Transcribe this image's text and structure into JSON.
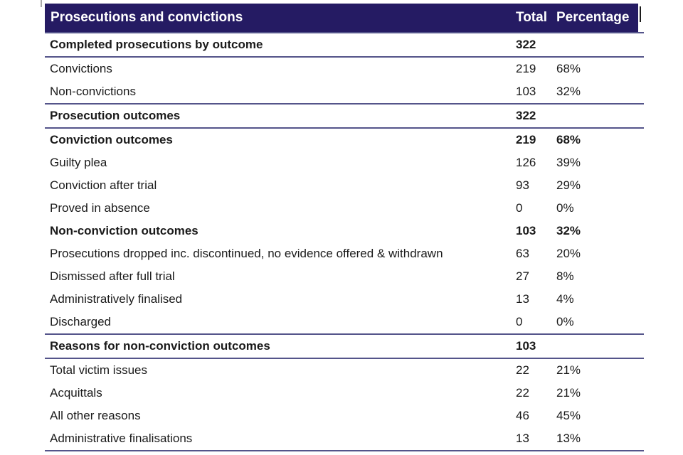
{
  "table": {
    "header": {
      "title": "Prosecutions and convictions",
      "col_total": "Total",
      "col_percentage": "Percentage"
    },
    "rows": [
      {
        "type": "section-bordered",
        "label": "Completed prosecutions by outcome",
        "total": "322",
        "pct": ""
      },
      {
        "type": "item",
        "label": "Convictions",
        "total": "219",
        "pct": "68%"
      },
      {
        "type": "item",
        "label": "Non-convictions",
        "total": "103",
        "pct": "32%"
      },
      {
        "type": "section-bordered",
        "label": "Prosecution outcomes",
        "total": "322",
        "pct": ""
      },
      {
        "type": "section",
        "label": "Conviction outcomes",
        "total": "219",
        "pct": "68%"
      },
      {
        "type": "item",
        "label": "Guilty plea",
        "total": "126",
        "pct": "39%"
      },
      {
        "type": "item",
        "label": "Conviction after trial",
        "total": "93",
        "pct": "29%"
      },
      {
        "type": "item",
        "label": "Proved in absence",
        "total": "0",
        "pct": "0%"
      },
      {
        "type": "section",
        "label": "Non-conviction outcomes",
        "total": "103",
        "pct": "32%"
      },
      {
        "type": "item",
        "label": "Prosecutions dropped inc. discontinued, no evidence offered & withdrawn",
        "total": "63",
        "pct": "20%"
      },
      {
        "type": "item",
        "label": "Dismissed after full trial",
        "total": "27",
        "pct": "8%"
      },
      {
        "type": "item",
        "label": "Administratively finalised",
        "total": "13",
        "pct": "4%"
      },
      {
        "type": "item",
        "label": "Discharged",
        "total": "0",
        "pct": "0%"
      },
      {
        "type": "section-bordered",
        "label": "Reasons for non-conviction outcomes",
        "total": "103",
        "pct": ""
      },
      {
        "type": "item",
        "label": "Total victim issues",
        "total": "22",
        "pct": "21%"
      },
      {
        "type": "item",
        "label": "Acquittals",
        "total": "22",
        "pct": "21%"
      },
      {
        "type": "item",
        "label": "All other reasons",
        "total": "46",
        "pct": "45%"
      },
      {
        "type": "item",
        "label": "Administrative finalisations",
        "total": "13",
        "pct": "13%"
      }
    ],
    "colors": {
      "header_bg": "#251b63",
      "header_text": "#ffffff",
      "divider": "#54548a",
      "body_text": "#1a1a1a"
    }
  }
}
